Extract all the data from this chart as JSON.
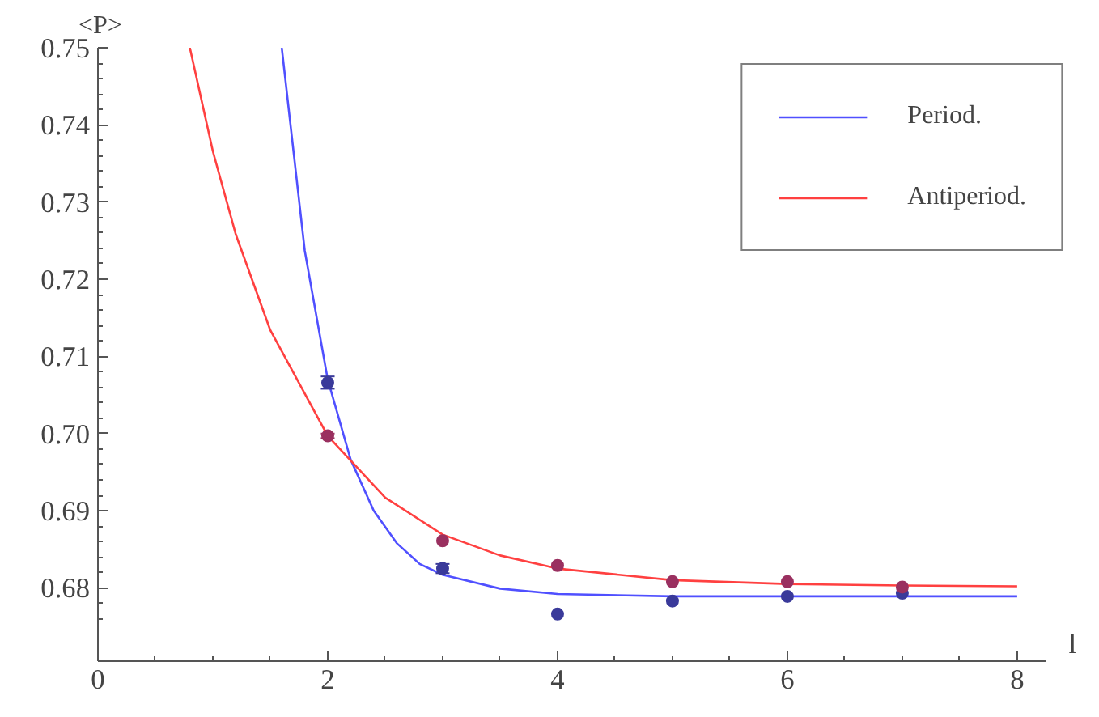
{
  "chart_data": {
    "type": "scatter",
    "xlabel": "l",
    "ylabel": "<P>",
    "xlim": [
      0,
      8.25
    ],
    "ylim": [
      0.6705,
      0.75
    ],
    "xticks": [
      0,
      2,
      4,
      6,
      8
    ],
    "yticks": [
      0.68,
      0.69,
      {
        "value": 0.7,
        "label": "0.70"
      },
      0.71,
      0.72,
      0.73,
      0.74,
      0.75
    ],
    "grid": false,
    "legend": "top right",
    "marker": "circle",
    "series": [
      {
        "type": "line",
        "marker": "none",
        "name": "Period.",
        "color": "#5050ff",
        "x": [
          1.6,
          1.8,
          2,
          2.2,
          2.4,
          2.6,
          2.8,
          3,
          3.5,
          4,
          5,
          6,
          8
        ],
        "values": [
          0.75,
          0.7237,
          0.707,
          0.6966,
          0.69,
          0.6858,
          0.6831,
          0.6817,
          0.6799,
          0.6792,
          0.6789,
          0.6789,
          0.6789
        ]
      },
      {
        "type": "line",
        "marker": "none",
        "name": "Antiperiod.",
        "color": "#ff4040",
        "x": [
          0.8,
          1,
          1.2,
          1.5,
          2,
          2.5,
          3,
          3.5,
          4,
          5,
          6,
          7,
          8
        ],
        "values": [
          0.75,
          0.7366,
          0.7258,
          0.7134,
          0.6997,
          0.6917,
          0.6869,
          0.6842,
          0.6825,
          0.681,
          0.6805,
          0.6803,
          0.6802
        ]
      },
      {
        "color": "#3a3a9a",
        "x": [
          2,
          3,
          4,
          5,
          6,
          7
        ],
        "values": [
          0.7066,
          0.6825,
          0.6766,
          0.6783,
          0.6789,
          0.6793
        ],
        "errors": [
          0.0008,
          0.0006,
          null,
          null,
          null,
          null
        ]
      },
      {
        "color": "#9a3060",
        "x": [
          2,
          3,
          4,
          5,
          6,
          7
        ],
        "values": [
          0.6997,
          0.6861,
          0.6829,
          0.6808,
          0.6808,
          0.6801
        ],
        "errors": [
          0.0003,
          null,
          null,
          null,
          null,
          null
        ]
      }
    ]
  }
}
